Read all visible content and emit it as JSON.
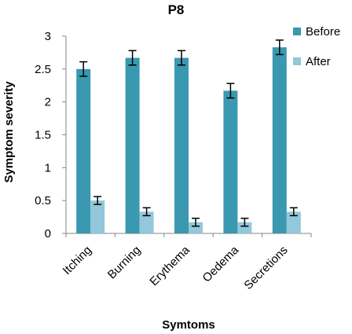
{
  "chart_data": {
    "type": "bar",
    "title": "P8",
    "xlabel": "Symtoms",
    "ylabel": "Symptom severity",
    "categories": [
      "Itching",
      "Burning",
      "Erythema",
      "Oedema",
      "Secretions"
    ],
    "ylim": [
      0,
      3
    ],
    "yticks": [
      "0",
      "0.5",
      "1",
      "1.5",
      "2",
      "2.5",
      "3"
    ],
    "series": [
      {
        "name": "Before",
        "color": "#3a98b0",
        "values": [
          2.5,
          2.67,
          2.67,
          2.17,
          2.83
        ],
        "errors": [
          0.11,
          0.11,
          0.11,
          0.11,
          0.11
        ]
      },
      {
        "name": "After",
        "color": "#92c8da",
        "values": [
          0.5,
          0.33,
          0.17,
          0.17,
          0.33
        ],
        "errors": [
          0.06,
          0.06,
          0.06,
          0.06,
          0.06
        ]
      }
    ],
    "grid": false,
    "legend_position": "right"
  }
}
